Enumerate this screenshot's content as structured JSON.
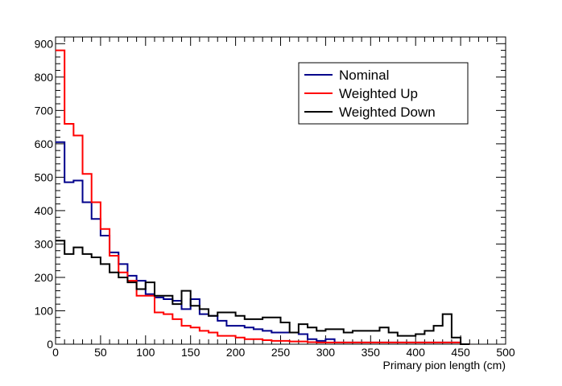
{
  "chart_data": {
    "type": "step-histogram",
    "xlabel": "Primary pion length (cm)",
    "ylabel": "",
    "xlim": [
      0,
      500
    ],
    "ylim": [
      0,
      920
    ],
    "x_ticks": [
      0,
      50,
      100,
      150,
      200,
      250,
      300,
      350,
      400,
      450,
      500
    ],
    "y_ticks": [
      0,
      100,
      200,
      300,
      400,
      500,
      600,
      700,
      800,
      900
    ],
    "bin_width": 10,
    "grid": false,
    "legend_position": "top-right",
    "series": [
      {
        "name": "Nominal",
        "color": "#00008b",
        "values": [
          605,
          485,
          490,
          425,
          375,
          325,
          275,
          240,
          205,
          190,
          150,
          140,
          135,
          130,
          105,
          135,
          90,
          85,
          70,
          55,
          55,
          50,
          45,
          40,
          35,
          35,
          35,
          30,
          15,
          10,
          15,
          5,
          5,
          5,
          5,
          5,
          5,
          5,
          5,
          5,
          5,
          5,
          5,
          5,
          5,
          0
        ]
      },
      {
        "name": "Weighted Up",
        "color": "#ff0000",
        "values": [
          880,
          660,
          625,
          510,
          425,
          345,
          265,
          215,
          190,
          145,
          145,
          95,
          90,
          75,
          55,
          50,
          40,
          35,
          25,
          25,
          20,
          15,
          15,
          12,
          10,
          10,
          8,
          8,
          6,
          5,
          5,
          5,
          5,
          5,
          5,
          5,
          5,
          5,
          5,
          5,
          5,
          5,
          5,
          5,
          5,
          0
        ]
      },
      {
        "name": "Weighted Down",
        "color": "#000000",
        "values": [
          310,
          270,
          290,
          270,
          260,
          240,
          215,
          200,
          185,
          165,
          185,
          145,
          145,
          120,
          160,
          115,
          105,
          85,
          95,
          95,
          85,
          75,
          75,
          80,
          80,
          65,
          35,
          60,
          50,
          40,
          45,
          45,
          35,
          40,
          40,
          40,
          50,
          35,
          25,
          25,
          30,
          40,
          55,
          90,
          20,
          0
        ]
      }
    ]
  }
}
